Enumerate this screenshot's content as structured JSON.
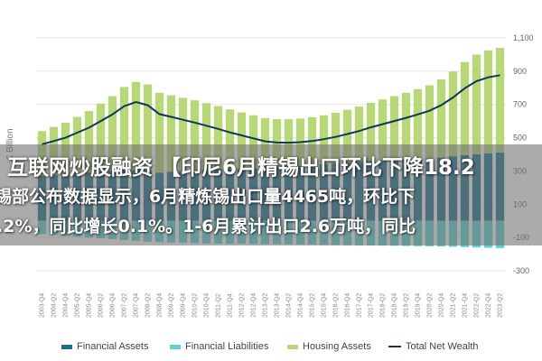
{
  "chart_data": {
    "type": "bar",
    "ylabel": "€ Billion",
    "y_ticks": [
      "1,100",
      "900",
      "700",
      "500",
      "300",
      "100",
      "-100",
      "-300"
    ],
    "ylim": [
      -300,
      1100
    ],
    "legend_position": "bottom",
    "categories": [
      "2003-Q4",
      "2004-Q2",
      "2004-Q4",
      "2005-Q2",
      "2005-Q4",
      "2006-Q2",
      "2006-Q4",
      "2007-Q2",
      "2007-Q4",
      "2008-Q2",
      "2008-Q4",
      "2009-Q2",
      "2009-Q4",
      "2010-Q2",
      "2010-Q4",
      "2011-Q2",
      "2011-Q4",
      "2012-Q2",
      "2012-Q4",
      "2013-Q2",
      "2013-Q4",
      "2014-Q2",
      "2014-Q4",
      "2015-Q2",
      "2015-Q4",
      "2016-Q2",
      "2016-Q4",
      "2017-Q2",
      "2017-Q4",
      "2018-Q2",
      "2018-Q4",
      "2019-Q2",
      "2019-Q4",
      "2020-Q2",
      "2020-Q4",
      "2021-Q2",
      "2021-Q4",
      "2022-Q2",
      "2022-Q4",
      "2023-Q2"
    ],
    "series": [
      {
        "name": "Financial Assets",
        "color": "#1f6e8c",
        "values": [
          270,
          275,
          280,
          285,
          290,
          295,
          300,
          305,
          305,
          300,
          290,
          295,
          300,
          305,
          308,
          310,
          310,
          312,
          315,
          318,
          322,
          326,
          330,
          335,
          340,
          345,
          350,
          355,
          360,
          362,
          365,
          368,
          372,
          375,
          380,
          388,
          395,
          400,
          405,
          410
        ]
      },
      {
        "name": "Financial Liabilities",
        "color": "#5fd1cf",
        "values": [
          -80,
          -85,
          -90,
          -95,
          -100,
          -105,
          -110,
          -115,
          -120,
          -125,
          -128,
          -130,
          -132,
          -134,
          -136,
          -137,
          -138,
          -138,
          -139,
          -140,
          -141,
          -141,
          -142,
          -143,
          -144,
          -145,
          -146,
          -147,
          -148,
          -149,
          -150,
          -151,
          -152,
          -153,
          -154,
          -156,
          -158,
          -160,
          -162,
          -164
        ]
      },
      {
        "name": "Housing Assets",
        "color": "#b8d878",
        "values": [
          270,
          290,
          310,
          340,
          370,
          410,
          450,
          500,
          530,
          520,
          480,
          460,
          440,
          420,
          400,
          380,
          360,
          340,
          320,
          300,
          290,
          285,
          285,
          288,
          295,
          305,
          318,
          332,
          350,
          368,
          385,
          402,
          420,
          440,
          470,
          510,
          560,
          600,
          620,
          630
        ]
      },
      {
        "name": "Total Net Wealth",
        "type": "line",
        "color": "#12355b",
        "values": [
          460,
          480,
          500,
          530,
          560,
          600,
          640,
          690,
          715,
          695,
          642,
          625,
          608,
          591,
          572,
          553,
          532,
          514,
          496,
          478,
          471,
          470,
          473,
          480,
          491,
          505,
          522,
          540,
          562,
          581,
          600,
          619,
          640,
          662,
          696,
          742,
          797,
          840,
          863,
          876
        ]
      }
    ],
    "x_tick_labels": [
      "2003-Q4",
      "2004-Q2",
      "2004-Q4",
      "2005-Q2",
      "2005-Q4",
      "2006-Q2",
      "2006-Q4",
      "2007-Q2",
      "2007-Q4",
      "2008-Q2",
      "2008-Q4",
      "2009-Q2",
      "2009-Q4",
      "2010-Q2",
      "2010-Q4",
      "2011-Q2",
      "2011-Q4",
      "2012-Q2",
      "2012-Q4",
      "2013-Q2",
      "2013-Q4",
      "2014-Q2",
      "2014-Q4",
      "2015-Q2",
      "2015-Q4",
      "2016-Q2",
      "2016-Q4",
      "2017-Q2",
      "2017-Q4",
      "2018-Q2",
      "2018-Q4",
      "2019-Q2",
      "2019-Q4",
      "2020-Q2",
      "2020-Q4",
      "2021-Q2",
      "2021-Q4",
      "2022-Q2",
      "2022-Q4",
      "2023-Q2"
    ]
  },
  "overlay": {
    "line1": "互联网炒股融资 【印尼6月精锡出口环比下降18.2",
    "line2": "锡部公布数据显示，6月精炼锡出口量4465吨，环比下",
    "line3": ".2%，同比增长0.1%。1-6月累计出口2.6万吨，同比"
  },
  "legend": {
    "financial_assets": "Financial Assets",
    "financial_liabilities": "Financial Liabilities",
    "housing_assets": "Housing Assets",
    "total_net_wealth": "Total Net Wealth"
  }
}
